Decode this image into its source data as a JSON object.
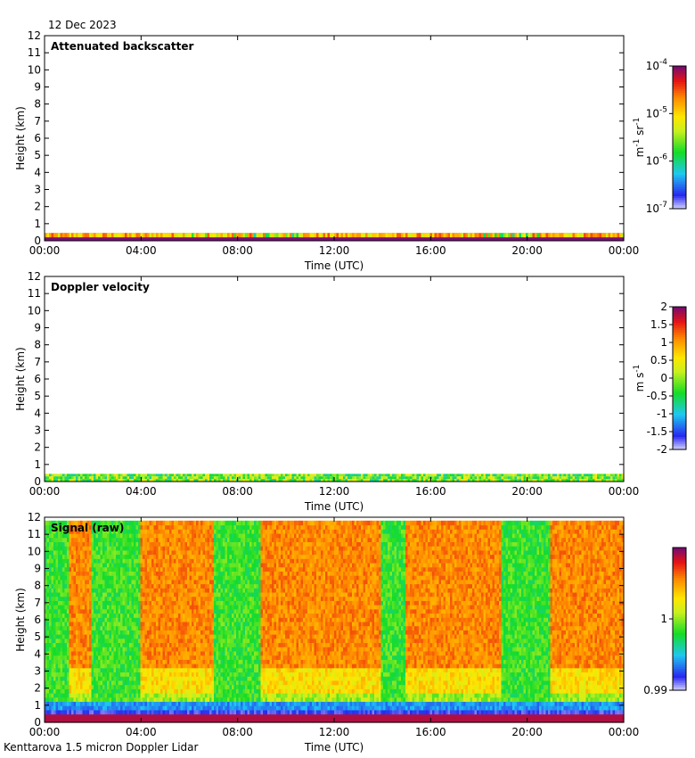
{
  "date_label": "12 Dec 2023",
  "footer_label": "Kenttarova 1.5 micron Doppler Lidar",
  "chart_data": [
    {
      "type": "heatmap",
      "title": "Attenuated backscatter",
      "xlabel": "Time (UTC)",
      "ylabel": "Height (km)",
      "x_ticks": [
        "00:00",
        "04:00",
        "08:00",
        "12:00",
        "16:00",
        "20:00",
        "00:00"
      ],
      "xlim_hours": [
        0,
        24
      ],
      "ylim": [
        0,
        12
      ],
      "y_ticks": [
        "0",
        "1",
        "2",
        "3",
        "4",
        "5",
        "6",
        "7",
        "8",
        "9",
        "10",
        "11",
        "12"
      ],
      "colorbar": {
        "unit_base": "m",
        "unit_exp1": "-1",
        "unit_mid": " sr",
        "unit_exp2": "-1",
        "scale": "log",
        "range": [
          1e-07,
          0.0001
        ],
        "ticks": [
          {
            "base": "10",
            "exp": "-4"
          },
          {
            "base": "10",
            "exp": "-5"
          },
          {
            "base": "10",
            "exp": "-6"
          },
          {
            "base": "10",
            "exp": "-7"
          }
        ]
      },
      "data_extent_km": [
        0,
        0.45
      ],
      "description": "Echo confined to lowest ~0.3 km, strongest near surface"
    },
    {
      "type": "heatmap",
      "title": "Doppler velocity",
      "xlabel": "Time (UTC)",
      "ylabel": "Height (km)",
      "x_ticks": [
        "00:00",
        "04:00",
        "08:00",
        "12:00",
        "16:00",
        "20:00",
        "00:00"
      ],
      "xlim_hours": [
        0,
        24
      ],
      "ylim": [
        0,
        12
      ],
      "y_ticks": [
        "0",
        "1",
        "2",
        "3",
        "4",
        "5",
        "6",
        "7",
        "8",
        "9",
        "10",
        "11",
        "12"
      ],
      "colorbar": {
        "unit_base": "m s",
        "unit_exp": "-1",
        "scale": "linear",
        "range": [
          -2,
          2
        ],
        "ticks": [
          "2",
          "1.5",
          "1",
          "0.5",
          "0",
          "-0.5",
          "-1",
          "-1.5",
          "-2"
        ]
      },
      "data_extent_km": [
        0,
        0.45
      ]
    },
    {
      "type": "heatmap",
      "title": "Signal (raw)",
      "xlabel": "Time (UTC)",
      "ylabel": "Height (km)",
      "x_ticks": [
        "00:00",
        "04:00",
        "08:00",
        "12:00",
        "16:00",
        "20:00",
        "00:00"
      ],
      "xlim_hours": [
        0,
        24
      ],
      "ylim": [
        0,
        12
      ],
      "y_ticks": [
        "0",
        "1",
        "2",
        "3",
        "4",
        "5",
        "6",
        "7",
        "8",
        "9",
        "10",
        "11",
        "12"
      ],
      "colorbar": {
        "scale": "linear",
        "range": [
          0.99,
          1.01
        ],
        "ticks": [
          "1",
          "0.99"
        ]
      },
      "low_signal_periods_hours": [
        [
          0,
          1
        ],
        [
          1.9,
          3.9
        ],
        [
          7.0,
          8.9
        ],
        [
          13.9,
          14.9
        ],
        [
          18.9,
          20.9
        ]
      ],
      "data_extent_km": [
        0,
        11.8
      ]
    }
  ]
}
